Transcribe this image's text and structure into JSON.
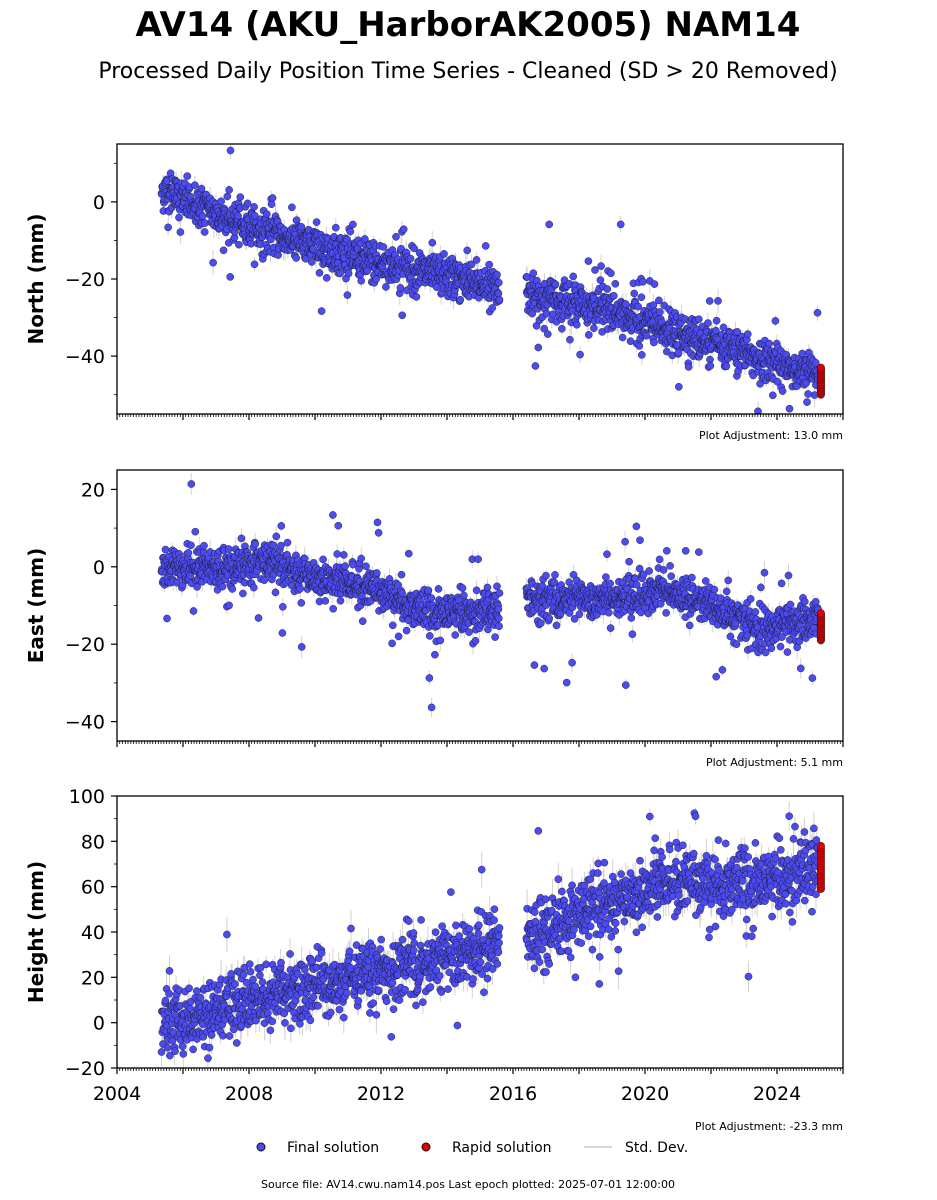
{
  "title": "AV14 (AKU_HarborAK2005) NAM14",
  "subtitle": "Processed Daily Position Time Series - Cleaned (SD > 20 Removed)",
  "footer": "Source file: AV14.cwu.nam14.pos  Last epoch plotted: 2025-07-01 12:00:00",
  "colors": {
    "final": "#4b4bf0",
    "rapid": "#e00000",
    "stddev": "#c8c8c8",
    "edge": "#111111"
  },
  "legend": {
    "placement": "bottom-center",
    "final_label": "Final solution",
    "rapid_label": "Rapid solution",
    "stddev_label": "Std. Dev."
  },
  "chart_data": [
    {
      "type": "scatter",
      "ylabel": "North (mm)",
      "adjustment": "Plot Adjustment: 13.0 mm",
      "xlim": [
        2004,
        2026
      ],
      "ylim": [
        -55,
        15
      ],
      "yticks": [
        0,
        -20,
        -40
      ],
      "ytick_labels": [
        "0",
        "−20",
        "−40"
      ],
      "xticks": [],
      "gap": [
        2015.6,
        2016.4
      ],
      "trend": [
        [
          2005.4,
          3
        ],
        [
          2008,
          -7
        ],
        [
          2012,
          -16
        ],
        [
          2015.5,
          -22
        ],
        [
          2016.5,
          -24
        ],
        [
          2019,
          -28
        ],
        [
          2022,
          -37
        ],
        [
          2025.3,
          -45
        ]
      ],
      "noise": 2.6,
      "outlier_rate": 0.06,
      "outlier_size": 8,
      "rapid_range": [
        -50,
        -43
      ]
    },
    {
      "type": "scatter",
      "ylabel": "East (mm)",
      "adjustment": "Plot Adjustment: 5.1 mm",
      "xlim": [
        2004,
        2026
      ],
      "ylim": [
        -45,
        25
      ],
      "yticks": [
        20,
        0,
        -20,
        -40
      ],
      "ytick_labels": [
        "20",
        "0",
        "−20",
        "−40"
      ],
      "xticks": [],
      "gap": [
        2015.6,
        2016.4
      ],
      "trend": [
        [
          2005.4,
          0
        ],
        [
          2007,
          0
        ],
        [
          2008.5,
          1
        ],
        [
          2010,
          -3
        ],
        [
          2012,
          -6
        ],
        [
          2013.5,
          -12
        ],
        [
          2015.5,
          -11
        ],
        [
          2016.5,
          -8
        ],
        [
          2019,
          -9
        ],
        [
          2020.5,
          -6
        ],
        [
          2022,
          -10
        ],
        [
          2023.5,
          -16
        ],
        [
          2025.3,
          -14
        ]
      ],
      "noise": 2.5,
      "outlier_rate": 0.05,
      "outlier_size": 9,
      "rapid_range": [
        -19,
        -12
      ]
    },
    {
      "type": "scatter",
      "ylabel": "Height (mm)",
      "adjustment": "Plot Adjustment: -23.3 mm",
      "xlim": [
        2004,
        2026
      ],
      "ylim": [
        -20,
        100
      ],
      "yticks": [
        100,
        80,
        60,
        40,
        20,
        0,
        -20
      ],
      "ytick_labels": [
        "100",
        "80",
        "60",
        "40",
        "20",
        "0",
        "−20"
      ],
      "xticks": [
        2004,
        2008,
        2012,
        2016,
        2020,
        2024
      ],
      "xtick_labels": [
        "2004",
        "2008",
        "2012",
        "2016",
        "2020",
        "2024"
      ],
      "gap": [
        2015.6,
        2016.4
      ],
      "trend": [
        [
          2005.4,
          0
        ],
        [
          2008,
          10
        ],
        [
          2012,
          22
        ],
        [
          2015.5,
          35
        ],
        [
          2016.5,
          40
        ],
        [
          2019,
          52
        ],
        [
          2021,
          63
        ],
        [
          2023.5,
          62
        ],
        [
          2025.3,
          70
        ]
      ],
      "noise": 7,
      "outlier_rate": 0.05,
      "outlier_size": 15,
      "rapid_range": [
        59,
        78
      ]
    }
  ]
}
